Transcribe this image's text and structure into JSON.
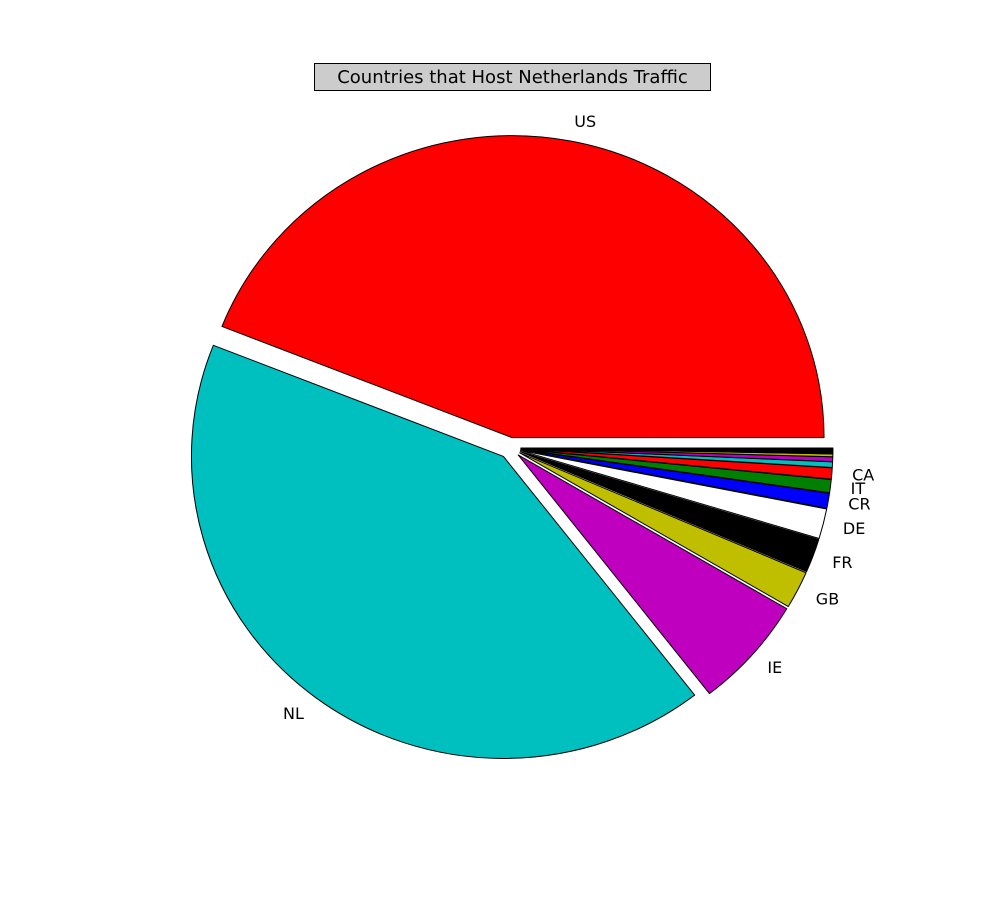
{
  "chart_data": {
    "type": "pie",
    "title": "Countries that Host Netherlands Traffic",
    "start_angle_deg": 0,
    "direction": "counterclockwise",
    "slices": [
      {
        "label": "US",
        "value": 44.0,
        "color": "#ff0000",
        "exploded": true
      },
      {
        "label": "NL",
        "value": 41.5,
        "color": "#00bfbf",
        "exploded": true
      },
      {
        "label": "IE",
        "value": 6.0,
        "color": "#bf00bf",
        "exploded": true
      },
      {
        "label": "GB",
        "value": 2.0,
        "color": "#bfbf00",
        "exploded": true
      },
      {
        "label": "FR",
        "value": 1.8,
        "color": "#000000",
        "exploded": true
      },
      {
        "label": "DE",
        "value": 1.6,
        "color": "#ffffff",
        "exploded": true
      },
      {
        "label": "CR",
        "value": 0.8,
        "color": "#0000ff",
        "exploded": true
      },
      {
        "label": "IT",
        "value": 0.7,
        "color": "#008000",
        "exploded": true
      },
      {
        "label": "CA",
        "value": 0.6,
        "color": "#ff0000",
        "exploded": true
      },
      {
        "label": "",
        "value": 0.3,
        "color": "#00bfbf",
        "exploded": true
      },
      {
        "label": "",
        "value": 0.25,
        "color": "#bf00bf",
        "exploded": true
      },
      {
        "label": "",
        "value": 0.15,
        "color": "#bfbf00",
        "exploded": true
      },
      {
        "label": "",
        "value": 0.1,
        "color": "#000000",
        "exploded": true
      },
      {
        "label": "",
        "value": 0.1,
        "color": "#000000",
        "exploded": true
      },
      {
        "label": "",
        "value": 0.1,
        "color": "#000000",
        "exploded": true
      }
    ]
  }
}
